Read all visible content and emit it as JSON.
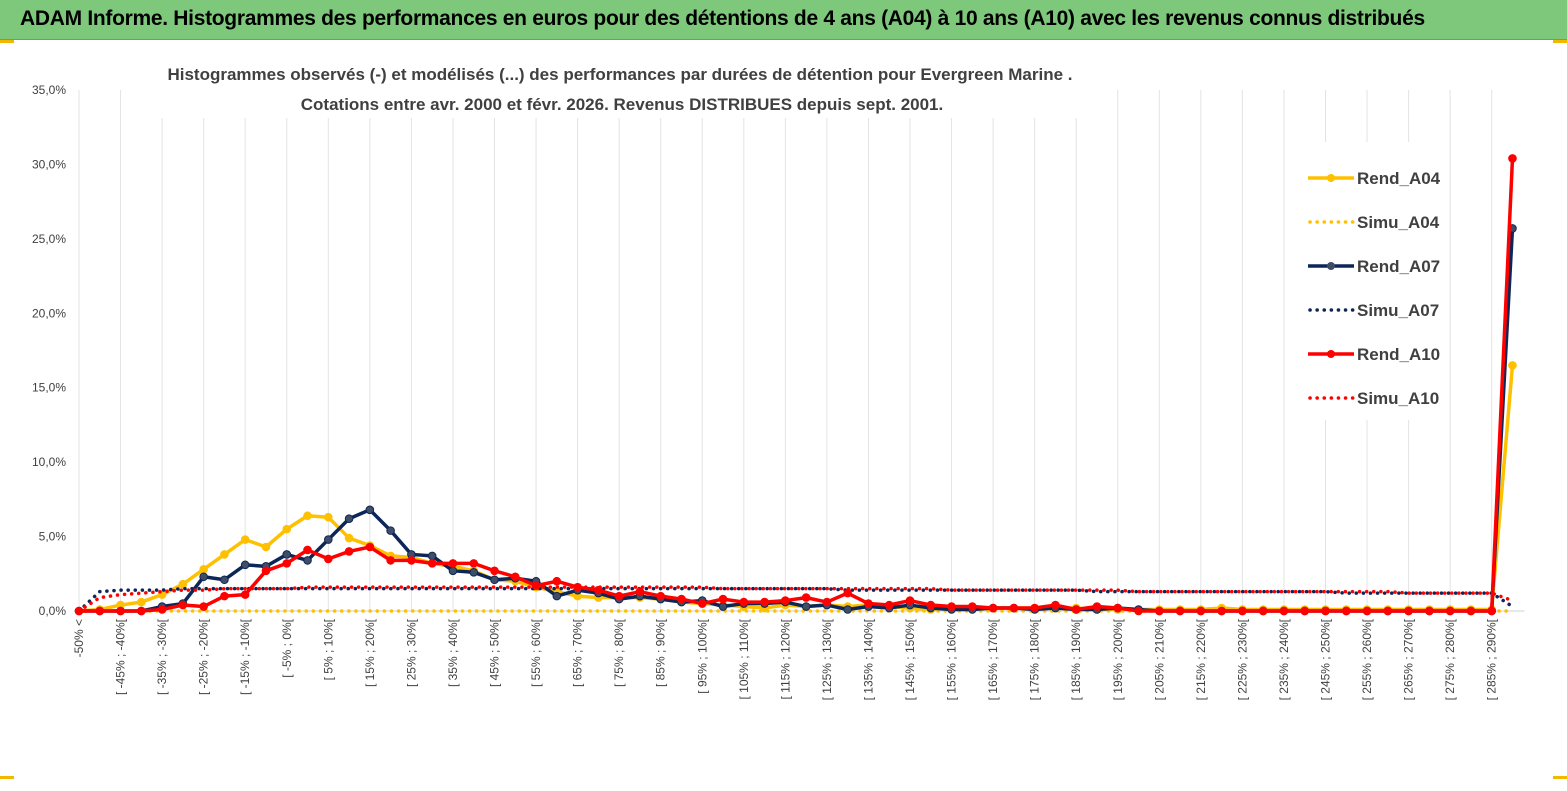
{
  "header": {
    "title": "ADAM Informe. Histogrammes des performances en euros pour des détentions de 4 ans (A04) à 10 ans (A10) avec les revenus connus distribués"
  },
  "chart_data": {
    "type": "line",
    "title_line1": "Histogrammes observés (-) et modélisés (...)  des performances par durées de détention pour Evergreen Marine .",
    "title_line2": "Cotations entre avr. 2000 et févr. 2026. Revenus DISTRIBUES depuis sept. 2001.",
    "ylim": [
      0,
      35
    ],
    "yticks": [
      "0,0%",
      "5,0%",
      "10,0%",
      "15,0%",
      "20,0%",
      "25,0%",
      "30,0%",
      "35,0%"
    ],
    "legend_position": "right",
    "categories": [
      "-50% <",
      "[ -50% ; -45%[",
      "[ -45% ; -40%[",
      "[ -40% ; -35%[",
      "[ -35% ; -30%[",
      "[ -30% ; -25%[",
      "[ -25% ; -20%[",
      "[ -20% ; -15%[",
      "[ -15% ; -10%[",
      "[ -10% ; -5%[",
      "[ -5% ; 0%[",
      "[ 0% ; 5%[",
      "[ 5% ; 10%[",
      "[ 10% ; 15%[",
      "[ 15% ; 20%[",
      "[ 20% ; 25%[",
      "[ 25% ; 30%[",
      "[ 30% ; 35%[",
      "[ 35% ; 40%[",
      "[ 40% ; 45%[",
      "[ 45% ; 50%[",
      "[ 50% ; 55%[",
      "[ 55% ; 60%[",
      "[ 60% ; 65%[",
      "[ 65% ; 70%[",
      "[ 70% ; 75%[",
      "[ 75% ; 80%[",
      "[ 80% ; 85%[",
      "[ 85% ; 90%[",
      "[ 90% ; 95%[",
      "[ 95% ; 100%[",
      "[ 100% ; 105%[",
      "[ 105% ; 110%[",
      "[ 110% ; 115%[",
      "[ 115% ; 120%[",
      "[ 120% ; 125%[",
      "[ 125% ; 130%[",
      "[ 130% ; 135%[",
      "[ 135% ; 140%[",
      "[ 140% ; 145%[",
      "[ 145% ; 150%[",
      "[ 150% ; 155%[",
      "[ 155% ; 160%[",
      "[ 160% ; 165%[",
      "[ 165% ; 170%[",
      "[ 170% ; 175%[",
      "[ 175% ; 180%[",
      "[ 180% ; 185%[",
      "[ 185% ; 190%[",
      "[ 190% ; 195%[",
      "[ 195% ; 200%[",
      "[ 200% ; 205%[",
      "[ 205% ; 210%[",
      "[ 210% ; 215%[",
      "[ 215% ; 220%[",
      "[ 220% ; 225%[",
      "[ 225% ; 230%[",
      "[ 230% ; 235%[",
      "[ 235% ; 240%[",
      "[ 240% ; 245%[",
      "[ 245% ; 250%[",
      "[ 250% ; 255%[",
      "[ 255% ; 260%[",
      "[ 260% ; 265%[",
      "[ 265% ; 270%[",
      "[ 270% ; 275%[",
      "[ 275% ; 280%[",
      "[ 280% ; 285%[",
      "[ 285% ; 290%[",
      "[ 290% ; 295%["
    ],
    "x_label_every": 2,
    "x_label_visible": [
      "-50% <",
      "[ -45% ; -40%[",
      "[ -35% ; -30%[",
      "[ -25% ; -20%[",
      "[ -15% ; -10%[",
      "[ -5% ; 0%[",
      "[ 5% ; 10%[",
      "[ 15% ; 20%[",
      "[ 25% ; 30%[",
      "[ 35% ; 40%[",
      "[ 45% ; 50%[",
      "[ 55% ; 60%[",
      "[ 65% ; 70%[",
      "[ 75% ; 80%[",
      "[ 85% ; 90%[",
      "[ 95% ; 100%[",
      "[ 105% ; 110%[",
      "[ 115% ; 120%[",
      "[ 125% ; 130%[",
      "[ 135% ; 140%[",
      "[ 145% ; 150%[",
      "[ 155% ; 160%[",
      "[ 165% ; 170%[",
      "[ 175% ; 180%[",
      "[ 185% ; 190%[",
      "[ 195% ; 200%[",
      "[ 205% ; 210%[",
      "[ 215% ; 220%[",
      "[ 225% ; 230%[",
      "[ 235% ; 240%[",
      "[ 245% ; 250%[",
      "[ 255% ; 260%[",
      "[ 265% ; 270%[",
      "[ 275% ; 280%[",
      "[ 285% ; 290%["
    ],
    "series": [
      {
        "name": "Rend_A04",
        "style": "solid",
        "color": "#ffc000",
        "values": [
          0.0,
          0.1,
          0.4,
          0.6,
          1.1,
          1.8,
          2.8,
          3.8,
          4.8,
          4.3,
          5.5,
          6.4,
          6.3,
          4.9,
          4.4,
          3.7,
          3.6,
          3.2,
          3.0,
          2.7,
          2.1,
          2.0,
          1.6,
          1.3,
          1.0,
          0.9,
          0.9,
          0.9,
          0.8,
          0.6,
          0.5,
          0.4,
          0.3,
          0.2,
          0.4,
          0.3,
          0.4,
          0.3,
          0.4,
          0.3,
          0.2,
          0.1,
          0.2,
          0.2,
          0.2,
          0.2,
          0.2,
          0.2,
          0.2,
          0.1,
          0.1,
          0.1,
          0.1,
          0.1,
          0.1,
          0.2,
          0.1,
          0.1,
          0.1,
          0.1,
          0.1,
          0.1,
          0.1,
          0.1,
          0.1,
          0.1,
          0.1,
          0.1,
          0.1,
          16.5
        ]
      },
      {
        "name": "Simu_A04",
        "style": "dotted",
        "color": "#ffc000",
        "values": [
          0.0,
          0.0,
          0.0,
          0.0,
          0.0,
          0.0,
          0.0,
          0.0,
          0.0,
          0.0,
          0.0,
          0.0,
          0.0,
          0.0,
          0.0,
          0.0,
          0.0,
          0.0,
          0.0,
          0.0,
          0.0,
          0.0,
          0.0,
          0.0,
          0.0,
          0.0,
          0.0,
          0.0,
          0.0,
          0.0,
          0.0,
          0.0,
          0.0,
          0.0,
          0.0,
          0.0,
          0.0,
          0.0,
          0.0,
          0.0,
          0.0,
          0.0,
          0.0,
          0.0,
          0.0,
          0.0,
          0.0,
          0.0,
          0.0,
          0.0,
          0.0,
          0.0,
          0.0,
          0.0,
          0.0,
          0.0,
          0.0,
          0.0,
          0.0,
          0.0,
          0.0,
          0.0,
          0.0,
          0.0,
          0.0,
          0.0,
          0.0,
          0.0,
          0.0,
          0.0
        ]
      },
      {
        "name": "Rend_A07",
        "style": "solid",
        "color": "#0d2658",
        "values": [
          0.0,
          0.0,
          0.0,
          0.0,
          0.3,
          0.5,
          2.3,
          2.1,
          3.1,
          3.0,
          3.8,
          3.4,
          4.8,
          6.2,
          6.8,
          5.4,
          3.8,
          3.7,
          2.7,
          2.6,
          2.1,
          2.2,
          2.0,
          1.0,
          1.4,
          1.2,
          0.8,
          1.0,
          0.8,
          0.6,
          0.7,
          0.3,
          0.5,
          0.5,
          0.6,
          0.3,
          0.4,
          0.1,
          0.3,
          0.2,
          0.4,
          0.2,
          0.1,
          0.1,
          0.2,
          0.2,
          0.1,
          0.2,
          0.1,
          0.1,
          0.2,
          0.1,
          0.0,
          0.0,
          0.0,
          0.0,
          0.0,
          0.0,
          0.0,
          0.0,
          0.0,
          0.0,
          0.0,
          0.0,
          0.0,
          0.0,
          0.0,
          0.0,
          0.0,
          25.7
        ]
      },
      {
        "name": "Simu_A07",
        "style": "dotted",
        "color": "#0d2658",
        "values": [
          0.0,
          1.3,
          1.4,
          1.4,
          1.4,
          1.5,
          1.5,
          1.5,
          1.5,
          1.5,
          1.5,
          1.5,
          1.5,
          1.5,
          1.5,
          1.5,
          1.5,
          1.5,
          1.5,
          1.5,
          1.5,
          1.5,
          1.5,
          1.5,
          1.5,
          1.5,
          1.5,
          1.5,
          1.5,
          1.5,
          1.5,
          1.5,
          1.5,
          1.5,
          1.5,
          1.5,
          1.5,
          1.4,
          1.4,
          1.4,
          1.4,
          1.4,
          1.4,
          1.4,
          1.4,
          1.4,
          1.4,
          1.4,
          1.4,
          1.3,
          1.3,
          1.3,
          1.3,
          1.3,
          1.3,
          1.3,
          1.3,
          1.3,
          1.3,
          1.3,
          1.3,
          1.2,
          1.2,
          1.2,
          1.2,
          1.2,
          1.2,
          1.2,
          1.2,
          0.3
        ]
      },
      {
        "name": "Rend_A10",
        "style": "solid",
        "color": "#ff0000",
        "values": [
          0.0,
          0.0,
          0.0,
          0.0,
          0.1,
          0.4,
          0.3,
          1.0,
          1.1,
          2.7,
          3.2,
          4.1,
          3.5,
          4.0,
          4.3,
          3.4,
          3.4,
          3.2,
          3.2,
          3.2,
          2.7,
          2.3,
          1.7,
          2.0,
          1.6,
          1.4,
          1.0,
          1.3,
          1.0,
          0.8,
          0.5,
          0.8,
          0.6,
          0.6,
          0.7,
          0.9,
          0.6,
          1.2,
          0.5,
          0.4,
          0.7,
          0.4,
          0.3,
          0.3,
          0.2,
          0.2,
          0.2,
          0.4,
          0.1,
          0.3,
          0.2,
          0.0,
          0.0,
          0.0,
          0.0,
          0.0,
          0.0,
          0.0,
          0.0,
          0.0,
          0.0,
          0.0,
          0.0,
          0.0,
          0.0,
          0.0,
          0.0,
          0.0,
          0.0,
          30.4
        ]
      },
      {
        "name": "Simu_A10",
        "style": "dotted",
        "color": "#ff0000",
        "values": [
          0.0,
          0.9,
          1.1,
          1.2,
          1.3,
          1.4,
          1.4,
          1.5,
          1.5,
          1.5,
          1.5,
          1.6,
          1.6,
          1.6,
          1.6,
          1.6,
          1.6,
          1.6,
          1.6,
          1.6,
          1.6,
          1.6,
          1.6,
          1.6,
          1.6,
          1.6,
          1.6,
          1.6,
          1.6,
          1.6,
          1.6,
          1.5,
          1.5,
          1.5,
          1.5,
          1.5,
          1.5,
          1.5,
          1.5,
          1.5,
          1.5,
          1.5,
          1.4,
          1.4,
          1.4,
          1.4,
          1.4,
          1.4,
          1.4,
          1.4,
          1.4,
          1.3,
          1.3,
          1.3,
          1.3,
          1.3,
          1.3,
          1.3,
          1.3,
          1.3,
          1.3,
          1.3,
          1.3,
          1.3,
          1.2,
          1.2,
          1.2,
          1.2,
          1.2,
          0.7
        ]
      }
    ]
  }
}
